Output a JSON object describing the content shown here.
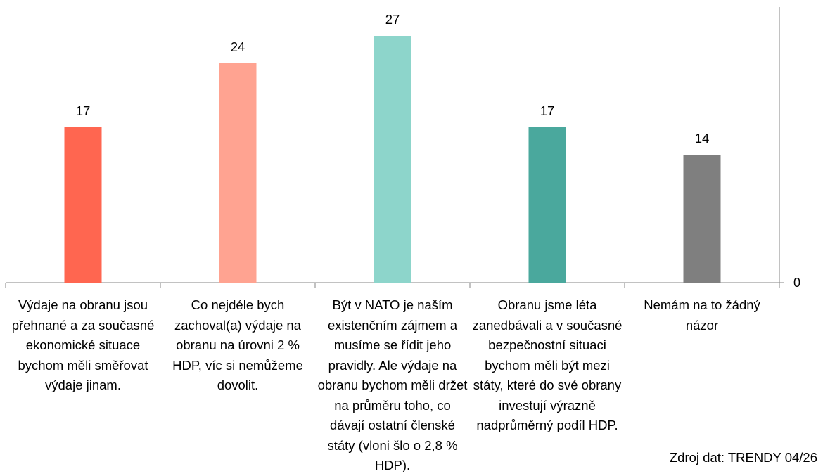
{
  "chart_data": {
    "type": "bar",
    "categories": [
      "Výdaje na obranu jsou přehnané a za současné ekonomické situace bychom měli směřovat výdaje jinam.",
      "Co nejdéle bych zachoval(a) výdaje na obranu na úrovni 2 % HDP, víc si nemůžeme dovolit.",
      "Být v NATO je naším existenčním zájmem a musíme se řídit jeho pravidly. Ale výdaje na obranu bychom měli držet na průměru toho, co dávají ostatní členské státy (vloni šlo o 2,8 % HDP).",
      "Obranu jsme léta zanedbávali a v současné bezpečnostní situaci bychom měli být mezi státy, které do své obrany investují výrazně nadprůměrný podíl HDP.",
      "Nemám na to žádný názor"
    ],
    "values": [
      17,
      24,
      27,
      17,
      14
    ],
    "colors": [
      "#ff6650",
      "#ffa391",
      "#8dd5cb",
      "#4aa89d",
      "#7f7f7f"
    ],
    "ylim": [
      0,
      30
    ],
    "y_axis_position": "right",
    "y_tick_labels": [
      "0"
    ],
    "data_labels": true,
    "grid": false,
    "title": "",
    "xlabel": "",
    "ylabel": ""
  },
  "source": "Zdroj dat: TRENDY 04/26"
}
